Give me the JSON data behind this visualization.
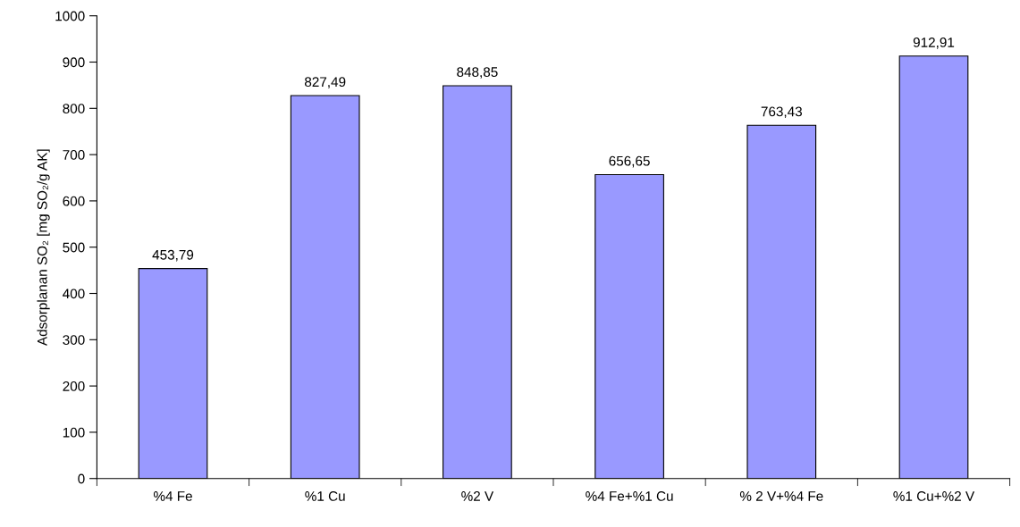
{
  "chart_data": {
    "type": "bar",
    "ylabel": "Adsorplanan SO₂ [mg SO₂/g AK]",
    "categories": [
      "%4 Fe",
      "%1 Cu",
      "%2 V",
      "%4 Fe+%1 Cu",
      "% 2 V+%4 Fe",
      "%1 Cu+%2 V"
    ],
    "values": [
      453.79,
      827.49,
      848.85,
      656.65,
      763.43,
      912.91
    ],
    "value_labels": [
      "453,79",
      "827,49",
      "848,85",
      "656,65",
      "763,43",
      "912,91"
    ],
    "color": "#9999ff",
    "ylim": [
      0,
      1000
    ],
    "yticks": [
      0,
      100,
      200,
      300,
      400,
      500,
      600,
      700,
      800,
      900,
      1000
    ],
    "grid": false,
    "legend": false
  }
}
